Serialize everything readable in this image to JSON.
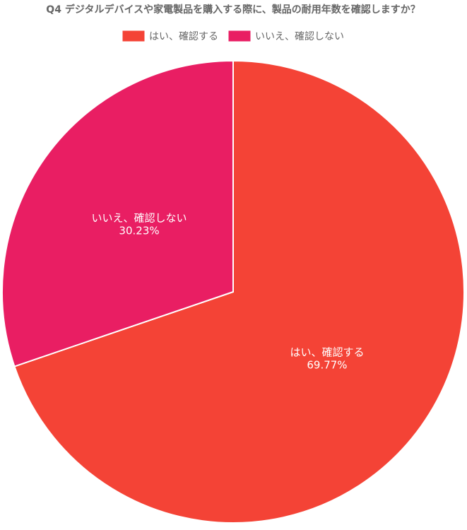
{
  "chart_data": {
    "type": "pie",
    "title": "Q4 デジタルデバイスや家電製品を購入する際に、製品の耐用年数を確認しますか？",
    "categories": [
      "はい、確認する",
      "いいえ、確認しない"
    ],
    "values": [
      69.77,
      30.23
    ],
    "value_labels": [
      "69.77%",
      "30.23%"
    ],
    "colors": [
      "#f44336",
      "#e91e63"
    ],
    "legend": "top"
  }
}
